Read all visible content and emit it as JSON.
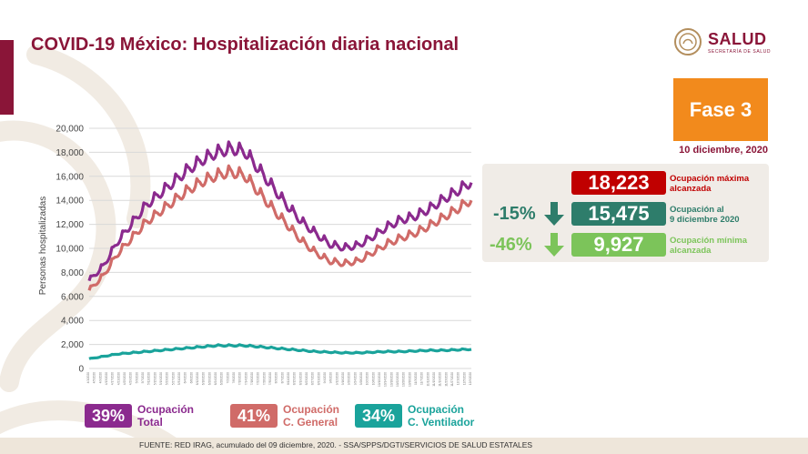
{
  "title": "COVID-19 México: Hospitalización diaria nacional",
  "logo": {
    "name": "SALUD",
    "subtitle": "SECRETARÍA DE SALUD"
  },
  "fase": "Fase 3",
  "date": "10 diciembre, 2020",
  "stats": {
    "max": {
      "value": "18,223",
      "label_1": "Ocupación máxima",
      "label_2": "alcanzada",
      "color": "#c00000"
    },
    "current": {
      "pct": "-15%",
      "value": "15,475",
      "label_1": "Ocupación al",
      "label_2": "9 diciembre 2020",
      "color": "#2e7d6b"
    },
    "min": {
      "pct": "-46%",
      "value": "9,927",
      "label_1": "Ocupación mínima",
      "label_2": "alcanzada",
      "color": "#7cc45a"
    }
  },
  "legend": [
    {
      "pct": "39%",
      "line1": "Ocupación",
      "line2": "Total",
      "color": "#8b2a8e"
    },
    {
      "pct": "41%",
      "line1": "Ocupación",
      "line2": "C. General",
      "color": "#d06b68"
    },
    {
      "pct": "34%",
      "line1": "Ocupación",
      "line2": "C. Ventilador",
      "color": "#1aa39b"
    }
  ],
  "footer": "FUENTE: RED IRAG, acumulado del 09 diciembre, 2020. -  SSA/SPPS/DGTI/SERVICIOS DE SALUD ESTATALES",
  "chart_data": {
    "type": "line",
    "ylabel": "Personas hospitalizadas",
    "ylim": [
      0,
      20000
    ],
    "yticks": [
      "0",
      "2,000",
      "4,000",
      "6,000",
      "8,000",
      "10,000",
      "12,000",
      "14,000",
      "16,000",
      "18,000",
      "20,000"
    ],
    "grid": true,
    "x_start": "2020-04-01",
    "x_end": "2020-12-09",
    "series": [
      {
        "color": "#8b2a8e",
        "values": [
          7300,
          8500,
          10500,
          12000,
          13500,
          14500,
          15500,
          16500,
          17300,
          17900,
          18223,
          18000,
          16500,
          15000,
          13500,
          12200,
          11200,
          10300,
          10000,
          10200,
          10900,
          11700,
          12300,
          12600,
          13200,
          14000,
          14700,
          15475
        ]
      },
      {
        "color": "#d06b68",
        "values": [
          6500,
          7700,
          9500,
          10800,
          12100,
          13000,
          13900,
          14800,
          15500,
          16000,
          16300,
          16000,
          14600,
          13200,
          11900,
          10600,
          9600,
          8900,
          8700,
          8900,
          9600,
          10300,
          10800,
          11200,
          11800,
          12500,
          13200,
          14000
        ]
      },
      {
        "color": "#1aa39b",
        "values": [
          800,
          1000,
          1200,
          1300,
          1400,
          1500,
          1600,
          1700,
          1800,
          1900,
          1900,
          1900,
          1800,
          1700,
          1600,
          1500,
          1400,
          1350,
          1300,
          1300,
          1350,
          1400,
          1400,
          1450,
          1500,
          1500,
          1550,
          1600
        ]
      }
    ]
  }
}
